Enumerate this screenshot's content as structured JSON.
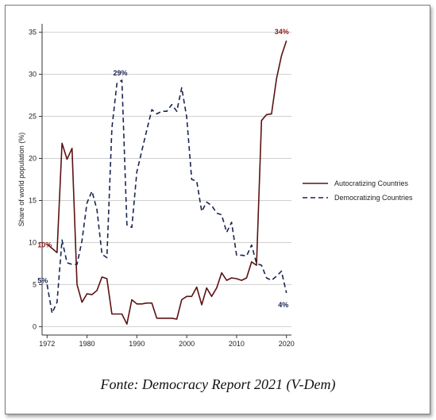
{
  "source_caption": "Fonte: Democracy Report 2021 (V-Dem)",
  "chart_data": {
    "type": "line",
    "title": "",
    "xlabel": "",
    "ylabel": "Share of world population (%)",
    "xlim": [
      1971,
      2021
    ],
    "ylim": [
      -1,
      36
    ],
    "x_ticks": [
      1972,
      1980,
      1990,
      2000,
      2010,
      2020
    ],
    "y_ticks": [
      0,
      5,
      10,
      15,
      20,
      25,
      30,
      35
    ],
    "grid": "horizontal",
    "legend_position": "right",
    "colors": {
      "autocratizing": "#5b1212",
      "democratizing": "#1b2452",
      "annotation_red": "#8b1a1a",
      "annotation_blue": "#1b2452"
    },
    "series": [
      {
        "name": "Autocratizing Countries",
        "style": "solid",
        "x": [
          1972,
          1973,
          1974,
          1975,
          1976,
          1977,
          1978,
          1979,
          1980,
          1981,
          1982,
          1983,
          1984,
          1985,
          1986,
          1987,
          1988,
          1989,
          1990,
          1991,
          1992,
          1993,
          1994,
          1995,
          1996,
          1997,
          1998,
          1999,
          2000,
          2001,
          2002,
          2003,
          2004,
          2005,
          2006,
          2007,
          2008,
          2009,
          2010,
          2011,
          2012,
          2013,
          2014,
          2015,
          2016,
          2017,
          2018,
          2019,
          2020
        ],
        "values": [
          9.8,
          9.3,
          8.8,
          21.8,
          19.9,
          21.2,
          5.0,
          2.9,
          3.9,
          3.8,
          4.3,
          5.9,
          5.7,
          1.5,
          1.5,
          1.5,
          0.3,
          3.2,
          2.7,
          2.7,
          2.8,
          2.8,
          1.0,
          1.0,
          1.0,
          1.0,
          0.9,
          3.2,
          3.6,
          3.6,
          4.7,
          2.6,
          4.6,
          3.6,
          4.6,
          6.4,
          5.5,
          5.8,
          5.7,
          5.5,
          5.8,
          7.7,
          7.3,
          24.5,
          25.2,
          25.3,
          29.5,
          32.2,
          34.0
        ]
      },
      {
        "name": "Democratizing Countries",
        "style": "dashed",
        "x": [
          1972,
          1973,
          1974,
          1975,
          1976,
          1977,
          1978,
          1979,
          1980,
          1981,
          1982,
          1983,
          1984,
          1985,
          1986,
          1987,
          1988,
          1989,
          1990,
          1991,
          1992,
          1993,
          1994,
          1995,
          1996,
          1997,
          1998,
          1999,
          2000,
          2001,
          2002,
          2003,
          2004,
          2005,
          2006,
          2007,
          2008,
          2009,
          2010,
          2011,
          2012,
          2013,
          2014,
          2015,
          2016,
          2017,
          2018,
          2019,
          2020
        ],
        "values": [
          5.0,
          1.6,
          2.9,
          10.3,
          7.6,
          7.4,
          7.4,
          10.2,
          14.7,
          16.1,
          13.9,
          8.6,
          8.2,
          23.6,
          28.9,
          29.3,
          12.1,
          11.8,
          18.4,
          20.9,
          23.4,
          25.8,
          25.3,
          25.6,
          25.6,
          26.4,
          25.6,
          28.4,
          24.9,
          17.5,
          17.3,
          13.7,
          14.8,
          14.4,
          13.5,
          13.3,
          11.2,
          12.4,
          8.5,
          8.5,
          8.4,
          9.7,
          7.5,
          7.3,
          5.8,
          5.5,
          6.0,
          6.6,
          4.0
        ]
      }
    ],
    "annotations": [
      {
        "text": "10%",
        "x": 1972,
        "y": 9.8,
        "series": "Autocratizing Countries"
      },
      {
        "text": "5%",
        "x": 1972,
        "y": 5.0,
        "series": "Democratizing Countries"
      },
      {
        "text": "29%",
        "x": 1987,
        "y": 29.3,
        "series": "Democratizing Countries"
      },
      {
        "text": "34%",
        "x": 2020,
        "y": 34.0,
        "series": "Autocratizing Countries"
      },
      {
        "text": "4%",
        "x": 2020,
        "y": 4.0,
        "series": "Democratizing Countries"
      }
    ]
  }
}
